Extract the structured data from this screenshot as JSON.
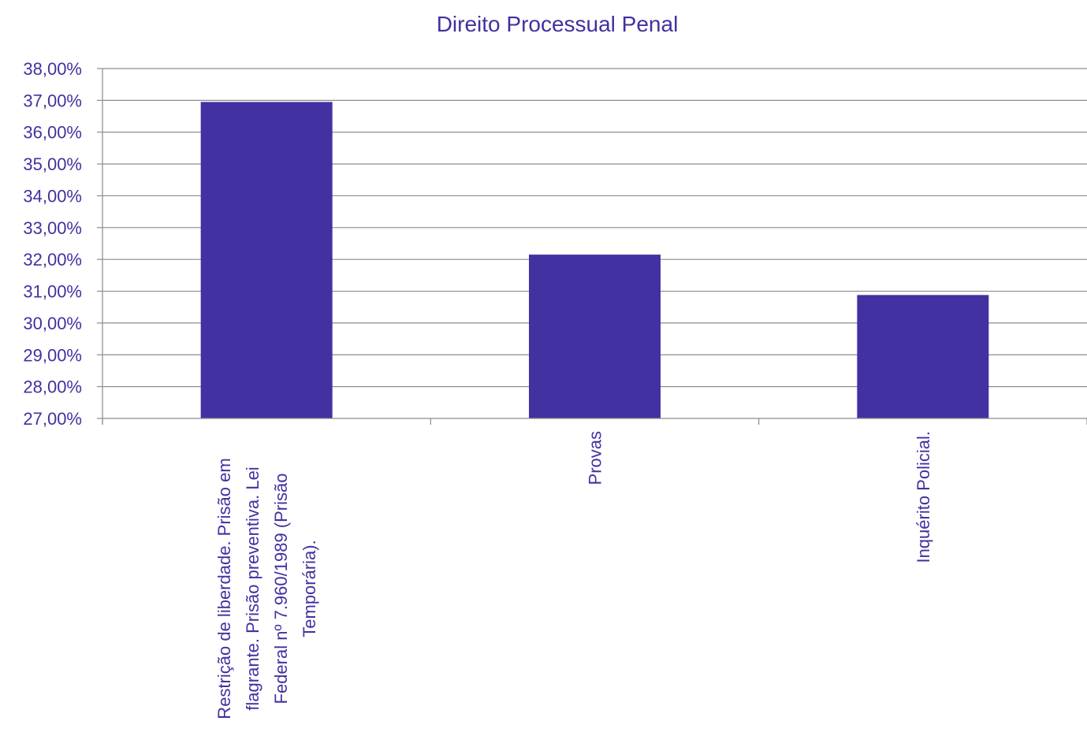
{
  "chart_data": {
    "type": "bar",
    "title": "Direito Processual Penal",
    "xlabel": "",
    "ylabel": "",
    "ylim": [
      27,
      38
    ],
    "y_ticks": [
      "27,00%",
      "28,00%",
      "29,00%",
      "30,00%",
      "31,00%",
      "32,00%",
      "33,00%",
      "34,00%",
      "35,00%",
      "36,00%",
      "37,00%",
      "38,00%"
    ],
    "y_tick_values": [
      27,
      28,
      29,
      30,
      31,
      32,
      33,
      34,
      35,
      36,
      37,
      38
    ],
    "grid": true,
    "legend": "none",
    "categories": [
      "Restrição de liberdade. Prisão em flagrante. Prisão preventiva. Lei Federal nº 7.960/1989 (Prisão Temporária).",
      "Provas",
      "Inquérito Policial."
    ],
    "category_label_lines": [
      [
        "Restrição de liberdade. Prisão em",
        "flagrante. Prisão preventiva. Lei",
        "Federal nº 7.960/1989 (Prisão",
        "Temporária)."
      ],
      [
        "Provas"
      ],
      [
        "Inquérito Policial."
      ]
    ],
    "values": [
      36.95,
      32.15,
      30.88
    ],
    "colors": {
      "bar": "#4231a1",
      "text": "#4231a1",
      "grid": "#8c8c8c",
      "axis": "#8c8c8c"
    }
  }
}
